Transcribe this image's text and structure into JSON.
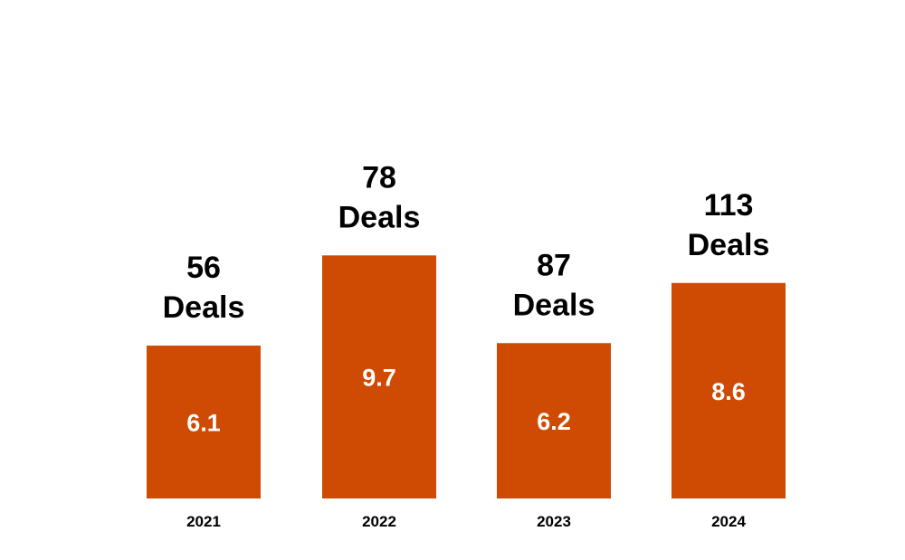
{
  "chart_data": {
    "type": "bar",
    "categories": [
      "2021",
      "2022",
      "2023",
      "2024"
    ],
    "values": [
      6.1,
      9.7,
      6.2,
      8.6
    ],
    "deal_counts": [
      "56",
      "78",
      "87",
      "113"
    ],
    "deal_unit": "Deals",
    "title": "",
    "xlabel": "",
    "ylabel": "",
    "ylim": [
      0,
      11
    ],
    "grid": false,
    "bar_color": "#CF4A02"
  }
}
